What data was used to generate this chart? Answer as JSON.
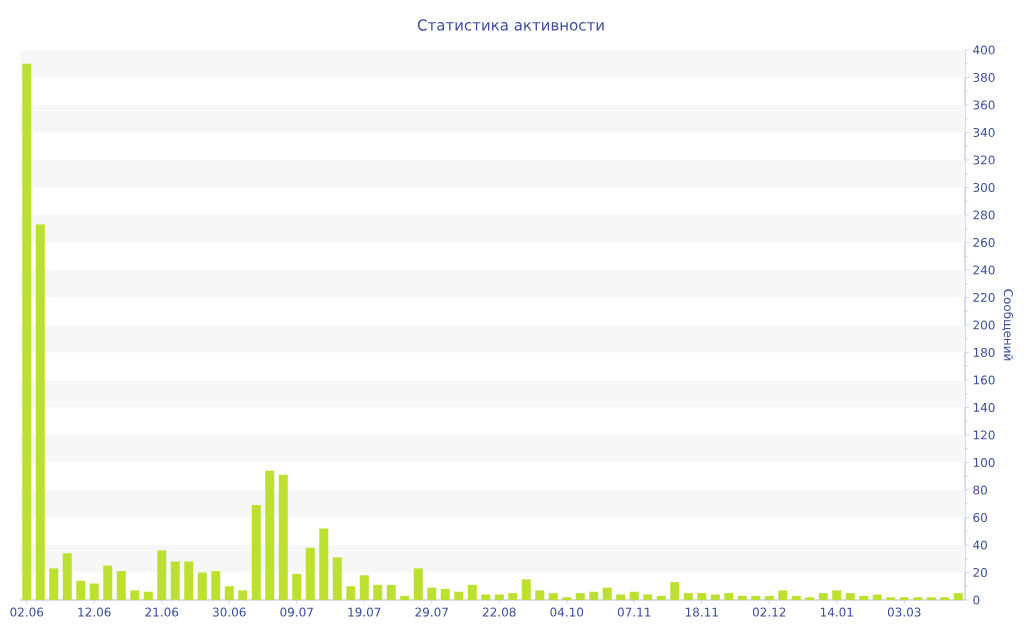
{
  "chart_data": {
    "type": "bar",
    "title": "Статистика активности",
    "ylabel": "Сообщений",
    "categories": [
      "02.06",
      null,
      null,
      null,
      null,
      "12.06",
      null,
      null,
      null,
      null,
      "21.06",
      null,
      null,
      null,
      null,
      "30.06",
      null,
      null,
      null,
      null,
      "09.07",
      null,
      null,
      null,
      null,
      "19.07",
      null,
      null,
      null,
      null,
      "29.07",
      null,
      null,
      null,
      null,
      "22.08",
      null,
      null,
      null,
      null,
      "04.10",
      null,
      null,
      null,
      null,
      "07.11",
      null,
      null,
      null,
      null,
      "18.11",
      null,
      null,
      null,
      null,
      "02.12",
      null,
      null,
      null,
      null,
      "14.01",
      null,
      null,
      null,
      null,
      "03.03",
      null,
      null,
      null,
      null
    ],
    "values": [
      390,
      273,
      23,
      34,
      14,
      12,
      25,
      21,
      7,
      6,
      36,
      28,
      28,
      20,
      21,
      10,
      7,
      69,
      94,
      91,
      19,
      38,
      52,
      31,
      10,
      18,
      11,
      11,
      3,
      23,
      9,
      8,
      6,
      11,
      4,
      4,
      5,
      15,
      7,
      5,
      2,
      5,
      6,
      9,
      4,
      6,
      4,
      3,
      13,
      5,
      5,
      4,
      5,
      3,
      3,
      3,
      7,
      3,
      2,
      5,
      7,
      5,
      3,
      4,
      2,
      2,
      2,
      2,
      2,
      5
    ],
    "color": "#bbe02f",
    "ylim": [
      0,
      400
    ],
    "yticks": [
      0,
      20,
      40,
      60,
      80,
      100,
      120,
      140,
      160,
      180,
      200,
      220,
      240,
      260,
      280,
      300,
      320,
      340,
      360,
      380,
      400
    ]
  }
}
